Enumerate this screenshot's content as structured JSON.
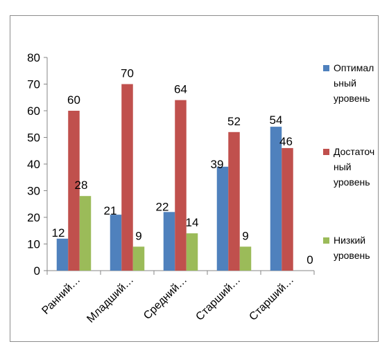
{
  "chart_data": {
    "type": "bar",
    "categories": [
      "Ранний…",
      "Младший…",
      "Средний…",
      "Старший…",
      "Старший…"
    ],
    "series": [
      {
        "name": "Оптимал ьный уровень",
        "values": [
          12,
          21,
          22,
          39,
          54
        ],
        "color": "#4F81BD",
        "legend_lines": [
          "Оптимал",
          "ьный",
          "уровень"
        ]
      },
      {
        "name": "Достаточ ный уровень",
        "values": [
          60,
          70,
          64,
          52,
          46
        ],
        "color": "#C0504D",
        "legend_lines": [
          "Достаточ",
          "ный",
          "уровень"
        ]
      },
      {
        "name": "Низкий уровень",
        "values": [
          28,
          9,
          14,
          9,
          0
        ],
        "color": "#9BBB59",
        "legend_lines": [
          "Низкий",
          "уровень"
        ]
      }
    ],
    "yticks": [
      0,
      10,
      20,
      30,
      40,
      50,
      60,
      70,
      80
    ],
    "ylim": [
      0,
      80
    ],
    "grid": false,
    "legend_position": "right",
    "title": "",
    "xlabel": "",
    "ylabel": ""
  }
}
